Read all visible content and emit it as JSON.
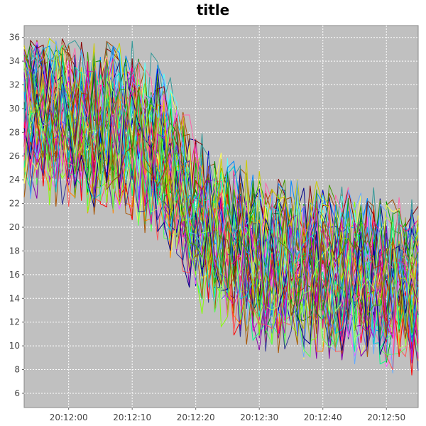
{
  "chart_data": {
    "type": "line",
    "title": "title",
    "xlabel": "",
    "ylabel": "",
    "x_axis": {
      "type": "time",
      "range": [
        "20:11:53",
        "20:12:55"
      ],
      "tick_labels": [
        "20:12:00",
        "20:12:10",
        "20:12:20",
        "20:12:30",
        "20:12:40",
        "20:12:50"
      ],
      "tick_seconds": [
        0,
        10,
        20,
        30,
        40,
        50
      ]
    },
    "y_axis": {
      "range": [
        4.8,
        37
      ],
      "tick_labels": [
        "6",
        "8",
        "10",
        "12",
        "14",
        "16",
        "18",
        "20",
        "22",
        "24",
        "26",
        "28",
        "30",
        "32",
        "34",
        "36"
      ],
      "tick_values": [
        6,
        8,
        10,
        12,
        14,
        16,
        18,
        20,
        22,
        24,
        26,
        28,
        30,
        32,
        34,
        36
      ]
    },
    "grid": true,
    "legend": "none",
    "plot_background": "#c0c0c0",
    "series_count": 60,
    "trend_mean": [
      {
        "x": "20:11:53",
        "y": 30
      },
      {
        "x": "20:12:10",
        "y": 28
      },
      {
        "x": "20:12:15",
        "y": 26
      },
      {
        "x": "20:12:20",
        "y": 21
      },
      {
        "x": "20:12:30",
        "y": 17
      },
      {
        "x": "20:12:55",
        "y": 15
      }
    ],
    "noise_amplitude": 6,
    "y_clip": [
      5,
      36
    ],
    "series_colors": [
      "#ff0000",
      "#00aa00",
      "#0000cc",
      "#ffff55",
      "#ff55ff",
      "#55ffff",
      "#ff8800",
      "#8800aa",
      "#008800",
      "#880000",
      "#0088ff",
      "#ff0088",
      "#88ff00",
      "#00ff88",
      "#aa5500",
      "#5555ff",
      "#ff5555",
      "#55ff55",
      "#333399",
      "#999933",
      "#339999",
      "#cc00cc",
      "#00cccc",
      "#cccc00",
      "#000088",
      "#ff66aa",
      "#66aaff",
      "#aaff66",
      "#994400",
      "#449900"
    ]
  }
}
